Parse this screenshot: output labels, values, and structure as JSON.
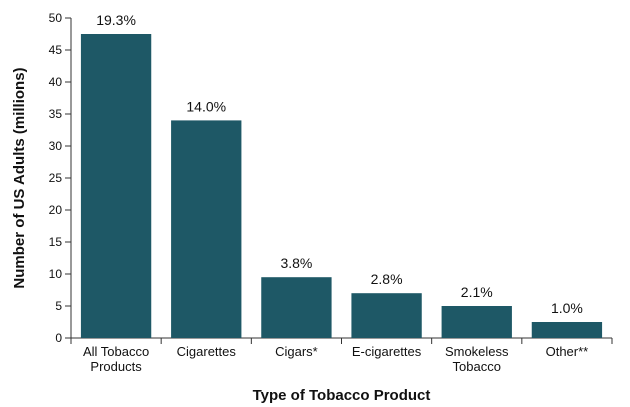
{
  "chart_data": {
    "type": "bar",
    "categories": [
      [
        "All Tobacco",
        "Products"
      ],
      [
        "Cigarettes"
      ],
      [
        "Cigars*"
      ],
      [
        "E-cigarettes"
      ],
      [
        "Smokeless",
        "Tobacco"
      ],
      [
        "Other**"
      ]
    ],
    "values": [
      47.5,
      34,
      9.5,
      7,
      5,
      2.5
    ],
    "data_labels": [
      "19.3%",
      "14.0%",
      "3.8%",
      "2.8%",
      "2.1%",
      "1.0%"
    ],
    "xlabel": "Type of Tobacco Product",
    "ylabel": "Number of US Adults (millions)",
    "ylim": [
      0,
      50
    ],
    "yticks": [
      0,
      5,
      10,
      15,
      20,
      25,
      30,
      35,
      40,
      45,
      50
    ],
    "bar_color": "#1e5866",
    "grid": false
  }
}
